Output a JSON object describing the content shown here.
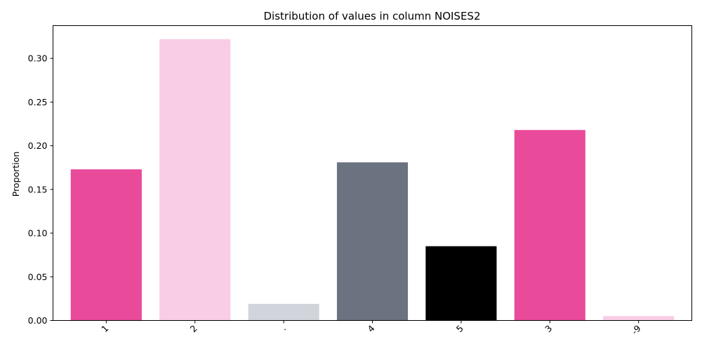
{
  "chart_data": {
    "type": "bar",
    "title": "Distribution of values in column NOISES2",
    "xlabel": "",
    "ylabel": "Proportion",
    "categories": [
      "1",
      "2",
      ".",
      "4",
      "5",
      "3",
      "-9"
    ],
    "values": [
      0.173,
      0.322,
      0.019,
      0.181,
      0.085,
      0.218,
      0.005
    ],
    "colors": [
      "#e94a9a",
      "#f9cde6",
      "#d1d5db",
      "#6b7280",
      "#000000",
      "#e94a9a",
      "#f9cde6"
    ],
    "ylim": [
      0,
      0.3375
    ],
    "yticks": [
      "0.00",
      "0.05",
      "0.10",
      "0.15",
      "0.20",
      "0.25",
      "0.30"
    ],
    "grid": false,
    "legend": "none"
  }
}
